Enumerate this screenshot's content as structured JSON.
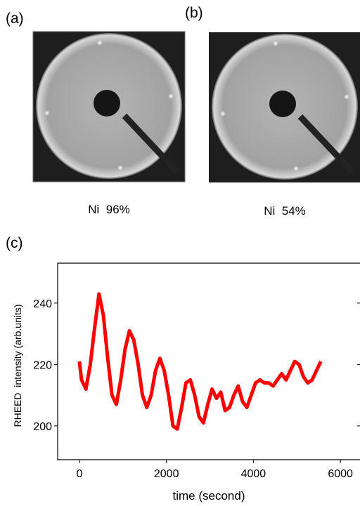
{
  "panels": [
    {
      "label": "(a)",
      "caption": "Ni  96%"
    },
    {
      "label": "(b)",
      "caption": "Ni  54%"
    }
  ],
  "chart_data": {
    "type": "line",
    "panel_label": "(c)",
    "x_label": "time (second)",
    "y_label": "RHEED  intensity (arb.units)",
    "xlim": [
      -500,
      6450
    ],
    "ylim": [
      189,
      253
    ],
    "xticks": [
      0,
      2000,
      4000,
      6000
    ],
    "yticks": [
      200,
      220,
      240
    ],
    "series": [
      {
        "color": "#ff0000",
        "x": [
          0,
          50,
          150,
          250,
          350,
          450,
          550,
          650,
          750,
          850,
          950,
          1050,
          1150,
          1250,
          1350,
          1450,
          1550,
          1650,
          1750,
          1850,
          1950,
          2050,
          2150,
          2250,
          2350,
          2450,
          2550,
          2650,
          2750,
          2850,
          2950,
          3050,
          3150,
          3250,
          3350,
          3450,
          3550,
          3650,
          3750,
          3850,
          3950,
          4050,
          4150,
          4250,
          4350,
          4450,
          4550,
          4650,
          4750,
          4850,
          4950,
          5050,
          5150,
          5250,
          5350,
          5450,
          5550
        ],
        "values": [
          221,
          215,
          212,
          220,
          232,
          243,
          236,
          222,
          210,
          207,
          215,
          225,
          231,
          228,
          220,
          210,
          206,
          210,
          218,
          222,
          218,
          210,
          200,
          199,
          206,
          214,
          215,
          210,
          203,
          201,
          207,
          212,
          209,
          211,
          205,
          206,
          210,
          213,
          208,
          206,
          210,
          214,
          215,
          214,
          214,
          213,
          215,
          217,
          215,
          218,
          221,
          220,
          216,
          214,
          215,
          218,
          221
        ]
      }
    ]
  }
}
